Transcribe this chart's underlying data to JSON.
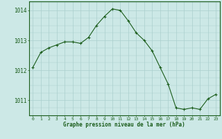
{
  "x": [
    0,
    1,
    2,
    3,
    4,
    5,
    6,
    7,
    8,
    9,
    10,
    11,
    12,
    13,
    14,
    15,
    16,
    17,
    18,
    19,
    20,
    21,
    22,
    23
  ],
  "y": [
    1012.1,
    1012.6,
    1012.75,
    1012.85,
    1012.95,
    1012.95,
    1012.9,
    1013.1,
    1013.5,
    1013.8,
    1014.05,
    1014.0,
    1013.65,
    1013.25,
    1013.0,
    1012.65,
    1012.1,
    1011.55,
    1010.75,
    1010.7,
    1010.75,
    1010.7,
    1011.05,
    1011.2
  ],
  "line_color": "#1a5c1a",
  "marker": "+",
  "bg_color": "#cce8e6",
  "grid_color": "#aacfcd",
  "xlabel": "Graphe pression niveau de la mer (hPa)",
  "xlabel_color": "#1a5c1a",
  "tick_color": "#1a5c1a",
  "ylim": [
    1010.5,
    1014.3
  ],
  "yticks": [
    1011,
    1012,
    1013,
    1014
  ],
  "xlim": [
    -0.5,
    23.5
  ],
  "xticks": [
    0,
    1,
    2,
    3,
    4,
    5,
    6,
    7,
    8,
    9,
    10,
    11,
    12,
    13,
    14,
    15,
    16,
    17,
    18,
    19,
    20,
    21,
    22,
    23
  ],
  "xtick_labels": [
    "0",
    "1",
    "2",
    "3",
    "4",
    "5",
    "6",
    "7",
    "8",
    "9",
    "10",
    "11",
    "12",
    "13",
    "14",
    "15",
    "16",
    "17",
    "18",
    "19",
    "20",
    "21",
    "22",
    "23"
  ],
  "spine_color": "#1a5c1a"
}
